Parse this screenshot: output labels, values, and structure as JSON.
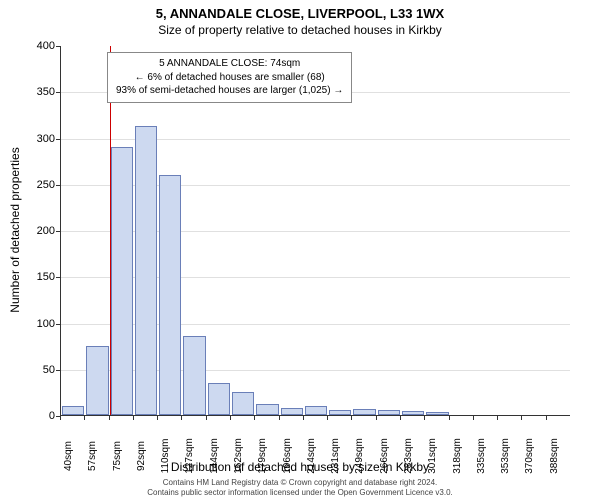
{
  "title_main": "5, ANNANDALE CLOSE, LIVERPOOL, L33 1WX",
  "title_sub": "Size of property relative to detached houses in Kirkby",
  "ylabel": "Number of detached properties",
  "xlabel": "Distribution of detached houses by size in Kirkby",
  "footer_line1": "Contains HM Land Registry data © Crown copyright and database right 2024.",
  "footer_line2": "Contains public sector information licensed under the Open Government Licence v3.0.",
  "chart": {
    "type": "histogram",
    "background_color": "#ffffff",
    "grid_color": "#e0e0e0",
    "axis_color": "#333333",
    "bar_fill": "#cdd9f0",
    "bar_stroke": "#6a7fb8",
    "marker_color": "#cc0000",
    "ylim": [
      0,
      400
    ],
    "ytick_step": 50,
    "x_categories": [
      "40sqm",
      "57sqm",
      "75sqm",
      "92sqm",
      "110sqm",
      "127sqm",
      "144sqm",
      "162sqm",
      "179sqm",
      "196sqm",
      "214sqm",
      "231sqm",
      "249sqm",
      "266sqm",
      "283sqm",
      "301sqm",
      "318sqm",
      "335sqm",
      "353sqm",
      "370sqm",
      "388sqm"
    ],
    "values": [
      10,
      75,
      290,
      312,
      260,
      85,
      35,
      25,
      12,
      8,
      10,
      5,
      6,
      5,
      4,
      3,
      0,
      0,
      0,
      0,
      0
    ],
    "marker_index": 2,
    "title_fontsize": 13,
    "label_fontsize": 12,
    "tick_fontsize": 11,
    "xtick_fontsize": 10,
    "footer_fontsize": 8
  },
  "annotation": {
    "line1": "5 ANNANDALE CLOSE: 74sqm",
    "line2": "← 6% of detached houses are smaller (68)",
    "line3": "93% of semi-detached houses are larger (1,025) →"
  }
}
